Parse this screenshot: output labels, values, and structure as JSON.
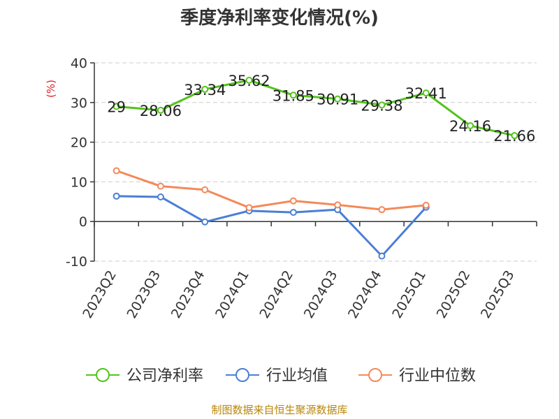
{
  "chart_data": {
    "type": "line",
    "title": "季度净利率变化情况(%)",
    "ylabel": "(%)",
    "source": "制图数据来自恒生聚源数据库",
    "categories": [
      "2023Q2",
      "2023Q3",
      "2023Q4",
      "2024Q1",
      "2024Q2",
      "2024Q3",
      "2024Q4",
      "2025Q1",
      "2025Q2",
      "2025Q3"
    ],
    "ylim": [
      -10,
      40
    ],
    "yticks": [
      "40",
      "30",
      "20",
      "10",
      "0",
      "-10"
    ],
    "grid": true,
    "legend_position": "bottom",
    "series": [
      {
        "name": "公司净利率",
        "color": "#52c41a",
        "show_labels": true,
        "values": [
          29,
          28.06,
          33.34,
          35.62,
          31.85,
          30.91,
          29.38,
          32.41,
          24.16,
          21.66
        ],
        "labels": [
          "29",
          "28.06",
          "33.34",
          "35.62",
          "31.85",
          "30.91",
          "29.38",
          "32.41",
          "24.16",
          "21.66"
        ]
      },
      {
        "name": "行业均值",
        "color": "#4a7fd6",
        "show_labels": false,
        "values": [
          6.4,
          6.2,
          -0.1,
          2.7,
          2.3,
          3.0,
          -8.7,
          3.6,
          null,
          null
        ]
      },
      {
        "name": "行业中位数",
        "color": "#f4895a",
        "show_labels": false,
        "values": [
          12.8,
          8.9,
          8.0,
          3.5,
          5.2,
          4.2,
          3.0,
          4.1,
          null,
          null
        ]
      }
    ],
    "colors": {
      "axis": "#333333",
      "grid": "#cccccc",
      "ylabel": "#e02020",
      "source": "#b8860b"
    }
  }
}
